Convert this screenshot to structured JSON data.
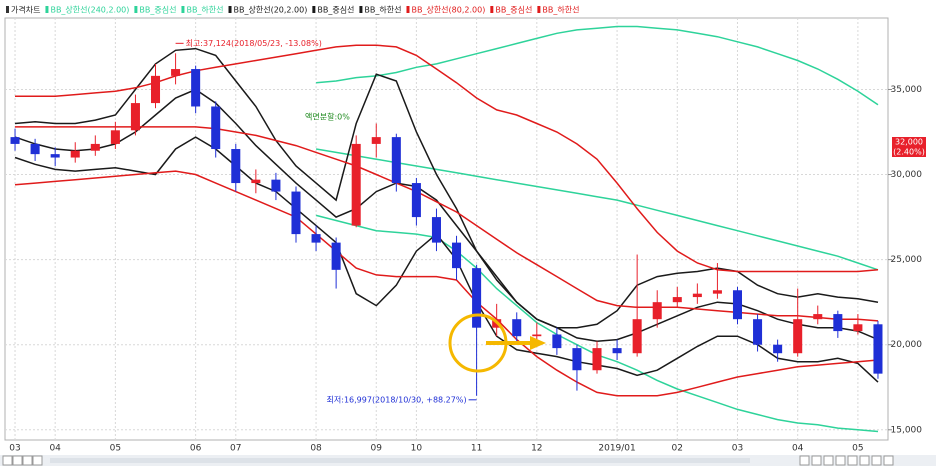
{
  "chart_data": {
    "type": "candlestick",
    "candles": {
      "name": "가격차트",
      "up_color": "#e8202a",
      "down_color": "#1f2fd6",
      "open": [
        32200,
        31800,
        31200,
        31000,
        31400,
        31800,
        32600,
        34200,
        35800,
        36200,
        34000,
        31500,
        29500,
        29700,
        29000,
        26500,
        26000,
        27000,
        31800,
        32200,
        29500,
        27500,
        26000,
        24500,
        21000,
        21500,
        20500,
        20600,
        19800,
        18500,
        19800,
        19500,
        21500,
        22500,
        22800,
        23000,
        23200,
        21500,
        20000,
        19500,
        21500,
        21800,
        20800,
        21200
      ],
      "high": [
        32700,
        32100,
        31600,
        31900,
        32300,
        33100,
        34700,
        36500,
        37124,
        36400,
        34300,
        31800,
        30300,
        30100,
        29300,
        27000,
        26300,
        32300,
        33000,
        32400,
        29800,
        28000,
        26400,
        24700,
        22400,
        21900,
        21300,
        21000,
        20000,
        20200,
        20300,
        25300,
        23200,
        23400,
        23600,
        24800,
        23400,
        21800,
        20300,
        23300,
        22300,
        22000,
        21800,
        21400
      ],
      "low": [
        31400,
        30800,
        30500,
        30700,
        31100,
        31500,
        32300,
        33900,
        35300,
        33600,
        31000,
        29000,
        28900,
        28500,
        26000,
        25500,
        23300,
        26900,
        31000,
        29000,
        27000,
        25500,
        23800,
        16997,
        20500,
        20000,
        20000,
        19400,
        17300,
        18300,
        19100,
        19300,
        21000,
        22200,
        22400,
        22700,
        21200,
        19600,
        19000,
        19300,
        21200,
        20400,
        20600,
        18000
      ],
      "close": [
        31800,
        31200,
        31000,
        31400,
        31800,
        32600,
        34200,
        35800,
        36200,
        34000,
        31500,
        29500,
        29700,
        29000,
        26500,
        26000,
        24400,
        31800,
        32200,
        29500,
        27500,
        26000,
        24500,
        21000,
        21500,
        20500,
        20600,
        19800,
        18500,
        19800,
        19500,
        21500,
        22500,
        22800,
        23000,
        23200,
        21500,
        20000,
        19500,
        21500,
        21800,
        20800,
        21200,
        18300
      ]
    },
    "categories": [
      "03",
      null,
      "04",
      null,
      null,
      "05",
      null,
      null,
      null,
      "06",
      null,
      "07",
      null,
      null,
      null,
      "08",
      null,
      null,
      "09",
      null,
      "10",
      null,
      null,
      "11",
      null,
      null,
      "12",
      null,
      null,
      null,
      "2019/01",
      null,
      null,
      "02",
      null,
      null,
      "03",
      null,
      null,
      "04",
      null,
      null,
      "05",
      null
    ],
    "series": [
      {
        "name": "BB_상한선(240,2.00)",
        "color": "#2ed39a",
        "values": [
          null,
          null,
          null,
          null,
          null,
          null,
          null,
          null,
          null,
          null,
          null,
          null,
          null,
          null,
          null,
          35400,
          35500,
          35700,
          35800,
          36000,
          36300,
          36500,
          36800,
          37100,
          37400,
          37700,
          38000,
          38300,
          38500,
          38600,
          38700,
          38700,
          38600,
          38500,
          38300,
          38100,
          37800,
          37500,
          37100,
          36700,
          36200,
          35600,
          34900,
          34100
        ]
      },
      {
        "name": "BB_중심선",
        "color": "#2ed39a",
        "values": [
          null,
          null,
          null,
          null,
          null,
          null,
          null,
          null,
          null,
          null,
          null,
          null,
          null,
          null,
          null,
          31500,
          31300,
          31100,
          30900,
          30700,
          30500,
          30300,
          30100,
          29900,
          29700,
          29500,
          29300,
          29100,
          28900,
          28700,
          28500,
          28200,
          27900,
          27600,
          27300,
          27000,
          26700,
          26400,
          26100,
          25800,
          25500,
          25200,
          24800,
          24400
        ]
      },
      {
        "name": "BB_하한선",
        "color": "#2ed39a",
        "values": [
          null,
          null,
          null,
          null,
          null,
          null,
          null,
          null,
          null,
          null,
          null,
          null,
          null,
          null,
          null,
          27600,
          27300,
          27000,
          26700,
          26600,
          26500,
          26300,
          25500,
          24500,
          23300,
          22300,
          21300,
          20600,
          20000,
          19400,
          19000,
          18500,
          17900,
          17400,
          17000,
          16600,
          16200,
          15900,
          15600,
          15400,
          15300,
          15100,
          15000,
          14900
        ]
      },
      {
        "name": "BB_상한선(20,2.00)",
        "color": "#1a1a1a",
        "values": [
          33000,
          33100,
          33000,
          33000,
          33200,
          33500,
          35000,
          36500,
          37300,
          37400,
          37000,
          35500,
          34000,
          32000,
          30500,
          29500,
          28500,
          33000,
          35900,
          35500,
          32500,
          30000,
          28000,
          25500,
          23800,
          22500,
          21500,
          21000,
          21000,
          21200,
          22000,
          23500,
          24000,
          24200,
          24300,
          24500,
          24300,
          23500,
          23000,
          22800,
          23000,
          22800,
          22700,
          22500
        ]
      },
      {
        "name": "BB_중심선",
        "color": "#1a1a1a",
        "values": [
          32200,
          31800,
          31500,
          31400,
          31500,
          31800,
          32500,
          33500,
          34500,
          35000,
          34200,
          33000,
          31700,
          30600,
          29500,
          28500,
          27500,
          28000,
          29000,
          29500,
          29300,
          28500,
          27000,
          25500,
          24000,
          22500,
          21500,
          21000,
          20400,
          20200,
          20300,
          20700,
          21200,
          21700,
          22200,
          22500,
          22400,
          22000,
          21500,
          21200,
          21000,
          21000,
          20800,
          20300
        ]
      },
      {
        "name": "BB_하한선",
        "color": "#1a1a1a",
        "values": [
          31000,
          30600,
          30300,
          30200,
          30300,
          30400,
          30200,
          30000,
          31500,
          32200,
          31500,
          30500,
          29500,
          29000,
          28000,
          27000,
          26000,
          23000,
          22300,
          23500,
          25500,
          26500,
          25000,
          22500,
          20500,
          19700,
          19500,
          19300,
          19000,
          18800,
          18600,
          18200,
          18500,
          19200,
          19900,
          20500,
          20500,
          20000,
          19200,
          19000,
          19000,
          19200,
          18900,
          17800
        ]
      },
      {
        "name": "BB_상한선(80,2.00)",
        "color": "#e01b1b",
        "values": [
          34600,
          34600,
          34600,
          34700,
          34800,
          34900,
          35100,
          35400,
          35800,
          36100,
          36300,
          36500,
          36700,
          36900,
          37100,
          37300,
          37500,
          37600,
          37600,
          37500,
          37000,
          36200,
          35400,
          34500,
          33800,
          33500,
          33000,
          32500,
          31800,
          30900,
          29500,
          28000,
          26600,
          25500,
          24800,
          24400,
          24300,
          24300,
          24300,
          24300,
          24300,
          24300,
          24300,
          24400
        ]
      },
      {
        "name": "BB_중심선",
        "color": "#e01b1b",
        "values": [
          32800,
          32800,
          32800,
          32800,
          32800,
          32800,
          32800,
          32800,
          32800,
          32800,
          32700,
          32500,
          32300,
          32000,
          31700,
          31300,
          30900,
          30500,
          30000,
          29500,
          29000,
          28400,
          27800,
          27000,
          26200,
          25400,
          24700,
          24000,
          23300,
          22600,
          22300,
          22200,
          22200,
          22200,
          22100,
          22000,
          21900,
          21800,
          21700,
          21700,
          21600,
          21500,
          21500,
          21400
        ]
      },
      {
        "name": "BB_하한선",
        "color": "#e01b1b",
        "values": [
          29400,
          29500,
          29600,
          29700,
          29800,
          29900,
          30000,
          30100,
          30200,
          30000,
          29500,
          29000,
          28500,
          28000,
          27500,
          26500,
          25500,
          24500,
          24100,
          24000,
          24000,
          24000,
          23800,
          22500,
          21500,
          20300,
          19300,
          18500,
          17800,
          17200,
          17000,
          17000,
          17000,
          17200,
          17500,
          17800,
          18100,
          18300,
          18500,
          18700,
          18800,
          18900,
          19000,
          19100
        ]
      }
    ],
    "ylim": [
      14400,
      39200
    ],
    "yticks": [
      {
        "value": 15000,
        "label": "15,000"
      },
      {
        "value": 20000,
        "label": "20,000"
      },
      {
        "value": 25000,
        "label": "25,000"
      },
      {
        "value": 30000,
        "label": "30,000"
      },
      {
        "value": 35000,
        "label": "35,000"
      }
    ],
    "grid": true,
    "annotations": {
      "high": "최고:37,124(2018/05/23, -13.08%)",
      "low": "최저:16,997(2018/10/30, +88.27%)",
      "split": "액면분할:0%"
    },
    "price_tag": {
      "price": "32,000",
      "change": "(2.40%)"
    }
  }
}
